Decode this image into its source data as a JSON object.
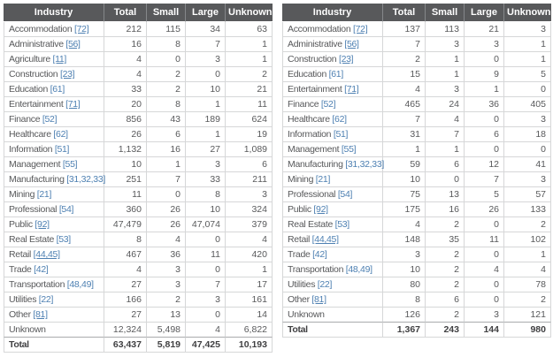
{
  "colors": {
    "header_bg": "#58595b",
    "header_text": "#ffffff",
    "header_divider": "#85878a",
    "cell_border": "#d6d7d8",
    "body_text": "#58595b",
    "total_text": "#404042",
    "link_blue": "#4e80b2"
  },
  "tables": [
    {
      "id": "left",
      "headers": [
        "Industry",
        "Total",
        "Small",
        "Large",
        "Unknown"
      ],
      "rows": [
        {
          "industry": "Accommodation",
          "code": "[72]",
          "underlined": true,
          "total": "212",
          "small": "115",
          "large": "34",
          "unknown": "63"
        },
        {
          "industry": "Administrative",
          "code": "[56]",
          "underlined": true,
          "total": "16",
          "small": "8",
          "large": "7",
          "unknown": "1"
        },
        {
          "industry": "Agriculture",
          "code": "[11]",
          "underlined": true,
          "total": "4",
          "small": "0",
          "large": "3",
          "unknown": "1"
        },
        {
          "industry": "Construction",
          "code": "[23]",
          "underlined": true,
          "total": "4",
          "small": "2",
          "large": "0",
          "unknown": "2"
        },
        {
          "industry": "Education",
          "code": "[61]",
          "underlined": false,
          "total": "33",
          "small": "2",
          "large": "10",
          "unknown": "21"
        },
        {
          "industry": "Entertainment",
          "code": "[71]",
          "underlined": true,
          "total": "20",
          "small": "8",
          "large": "1",
          "unknown": "11"
        },
        {
          "industry": "Finance",
          "code": "[52]",
          "underlined": false,
          "total": "856",
          "small": "43",
          "large": "189",
          "unknown": "624"
        },
        {
          "industry": "Healthcare",
          "code": "[62]",
          "underlined": false,
          "total": "26",
          "small": "6",
          "large": "1",
          "unknown": "19"
        },
        {
          "industry": "Information",
          "code": "[51]",
          "underlined": false,
          "total": "1,132",
          "small": "16",
          "large": "27",
          "unknown": "1,089"
        },
        {
          "industry": "Management",
          "code": "[55]",
          "underlined": false,
          "total": "10",
          "small": "1",
          "large": "3",
          "unknown": "6"
        },
        {
          "industry": "Manufacturing",
          "code": "[31,32,33]",
          "underlined": false,
          "total": "251",
          "small": "7",
          "large": "33",
          "unknown": "211"
        },
        {
          "industry": "Mining",
          "code": "[21]",
          "underlined": false,
          "total": "11",
          "small": "0",
          "large": "8",
          "unknown": "3"
        },
        {
          "industry": "Professional",
          "code": "[54]",
          "underlined": false,
          "total": "360",
          "small": "26",
          "large": "10",
          "unknown": "324"
        },
        {
          "industry": "Public",
          "code": "[92]",
          "underlined": true,
          "total": "47,479",
          "small": "26",
          "large": "47,074",
          "unknown": "379"
        },
        {
          "industry": "Real Estate",
          "code": "[53]",
          "underlined": false,
          "total": "8",
          "small": "4",
          "large": "0",
          "unknown": "4"
        },
        {
          "industry": "Retail",
          "code": "[44,45]",
          "underlined": true,
          "total": "467",
          "small": "36",
          "large": "11",
          "unknown": "420"
        },
        {
          "industry": "Trade",
          "code": "[42]",
          "underlined": false,
          "total": "4",
          "small": "3",
          "large": "0",
          "unknown": "1"
        },
        {
          "industry": "Transportation",
          "code": "[48,49]",
          "underlined": false,
          "total": "27",
          "small": "3",
          "large": "7",
          "unknown": "17"
        },
        {
          "industry": "Utilities",
          "code": "[22]",
          "underlined": false,
          "total": "166",
          "small": "2",
          "large": "3",
          "unknown": "161"
        },
        {
          "industry": "Other",
          "code": "[81]",
          "underlined": true,
          "total": "27",
          "small": "13",
          "large": "0",
          "unknown": "14"
        },
        {
          "industry": "Unknown",
          "code": null,
          "underlined": false,
          "total": "12,324",
          "small": "5,498",
          "large": "4",
          "unknown": "6,822"
        }
      ],
      "total_row": {
        "label": "Total",
        "total": "63,437",
        "small": "5,819",
        "large": "47,425",
        "unknown": "10,193"
      }
    },
    {
      "id": "right",
      "headers": [
        "Industry",
        "Total",
        "Small",
        "Large",
        "Unknown"
      ],
      "rows": [
        {
          "industry": "Accommodation",
          "code": "[72]",
          "underlined": true,
          "total": "137",
          "small": "113",
          "large": "21",
          "unknown": "3"
        },
        {
          "industry": "Administrative",
          "code": "[56]",
          "underlined": true,
          "total": "7",
          "small": "3",
          "large": "3",
          "unknown": "1"
        },
        {
          "industry": "Construction",
          "code": "[23]",
          "underlined": true,
          "total": "2",
          "small": "1",
          "large": "0",
          "unknown": "1"
        },
        {
          "industry": "Education",
          "code": "[61]",
          "underlined": false,
          "total": "15",
          "small": "1",
          "large": "9",
          "unknown": "5"
        },
        {
          "industry": "Entertainment",
          "code": "[71]",
          "underlined": true,
          "total": "4",
          "small": "3",
          "large": "1",
          "unknown": "0"
        },
        {
          "industry": "Finance",
          "code": "[52]",
          "underlined": false,
          "total": "465",
          "small": "24",
          "large": "36",
          "unknown": "405"
        },
        {
          "industry": "Healthcare",
          "code": "[62]",
          "underlined": false,
          "total": "7",
          "small": "4",
          "large": "0",
          "unknown": "3"
        },
        {
          "industry": "Information",
          "code": "[51]",
          "underlined": false,
          "total": "31",
          "small": "7",
          "large": "6",
          "unknown": "18"
        },
        {
          "industry": "Management",
          "code": "[55]",
          "underlined": false,
          "total": "1",
          "small": "1",
          "large": "0",
          "unknown": "0"
        },
        {
          "industry": "Manufacturing",
          "code": "[31,32,33]",
          "underlined": false,
          "total": "59",
          "small": "6",
          "large": "12",
          "unknown": "41"
        },
        {
          "industry": "Mining",
          "code": "[21]",
          "underlined": false,
          "total": "10",
          "small": "0",
          "large": "7",
          "unknown": "3"
        },
        {
          "industry": "Professional",
          "code": "[54]",
          "underlined": false,
          "total": "75",
          "small": "13",
          "large": "5",
          "unknown": "57"
        },
        {
          "industry": "Public",
          "code": "[92]",
          "underlined": true,
          "total": "175",
          "small": "16",
          "large": "26",
          "unknown": "133"
        },
        {
          "industry": "Real Estate",
          "code": "[53]",
          "underlined": false,
          "total": "4",
          "small": "2",
          "large": "0",
          "unknown": "2"
        },
        {
          "industry": "Retail",
          "code": "[44,45]",
          "underlined": true,
          "total": "148",
          "small": "35",
          "large": "11",
          "unknown": "102"
        },
        {
          "industry": "Trade",
          "code": "[42]",
          "underlined": false,
          "total": "3",
          "small": "2",
          "large": "0",
          "unknown": "1"
        },
        {
          "industry": "Transportation",
          "code": "[48,49]",
          "underlined": false,
          "total": "10",
          "small": "2",
          "large": "4",
          "unknown": "4"
        },
        {
          "industry": "Utilities",
          "code": "[22]",
          "underlined": false,
          "total": "80",
          "small": "2",
          "large": "0",
          "unknown": "78"
        },
        {
          "industry": "Other",
          "code": "[81]",
          "underlined": true,
          "total": "8",
          "small": "6",
          "large": "0",
          "unknown": "2"
        },
        {
          "industry": "Unknown",
          "code": null,
          "underlined": false,
          "total": "126",
          "small": "2",
          "large": "3",
          "unknown": "121"
        }
      ],
      "total_row": {
        "label": "Total",
        "total": "1,367",
        "small": "243",
        "large": "144",
        "unknown": "980"
      }
    }
  ]
}
